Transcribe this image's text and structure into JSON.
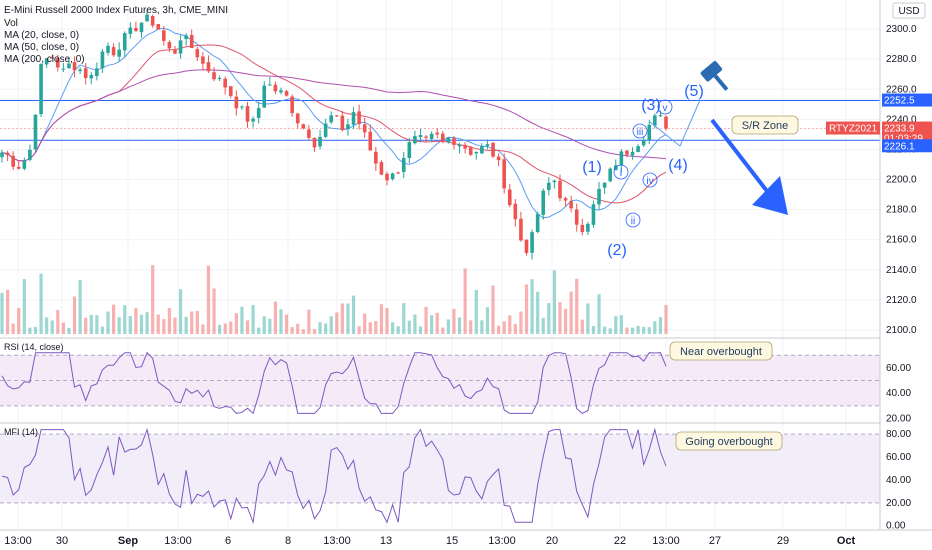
{
  "header": {
    "title": "E-Mini Russell 2000 Index Futures, 3h, CME_MINI",
    "indicators": [
      "Vol",
      "MA (20, close, 0)",
      "MA (50, close, 0)",
      "MA (200, close, 0)"
    ],
    "currency": "USD"
  },
  "chart_data": {
    "type": "candlestick",
    "price_axis": {
      "ticks": [
        2100,
        2120,
        2140,
        2160,
        2180,
        2200,
        2220,
        2240,
        2260,
        2280,
        2300
      ],
      "range": [
        2096,
        2318
      ]
    },
    "time_axis": {
      "labels": [
        "13:00",
        "30",
        "Sep",
        "13:00",
        "6",
        "8",
        "13:00",
        "13",
        "15",
        "13:00",
        "20",
        "22",
        "13:00",
        "27",
        "29",
        "Oct"
      ]
    },
    "last_price": {
      "symbol": "RTYZ2021",
      "value": "2233.9",
      "countdown": "01:03:29",
      "color": "#ef5350"
    },
    "levels": [
      {
        "value": 2252.5,
        "label": "2252.5",
        "color": "#2962ff"
      },
      {
        "value": 2226.1,
        "label": "2226.1",
        "color": "#2962ff"
      }
    ],
    "moving_averages": [
      {
        "period": 20,
        "color": "#5b9cf6"
      },
      {
        "period": 50,
        "color": "#e0546b"
      },
      {
        "period": 200,
        "color": "#b04fb0"
      }
    ],
    "close_path": [
      2218,
      2215,
      2208,
      2213,
      2222,
      2272,
      2280,
      2282,
      2270,
      2276,
      2276,
      2270,
      2268,
      2280,
      2290,
      2285,
      2292,
      2296,
      2302,
      2306,
      2306,
      2300,
      2288,
      2283,
      2296,
      2290,
      2285,
      2276,
      2272,
      2266,
      2262,
      2254,
      2246,
      2240,
      2236,
      2265,
      2262,
      2258,
      2256,
      2246,
      2236,
      2232,
      2224,
      2232,
      2242,
      2238,
      2232,
      2246,
      2236,
      2224,
      2212,
      2204,
      2200,
      2206,
      2218,
      2226,
      2226,
      2224,
      2230,
      2224,
      2228,
      2226,
      2222,
      2218,
      2220,
      2222,
      2216,
      2204,
      2185,
      2170,
      2152,
      2160,
      2182,
      2196,
      2200,
      2188,
      2180,
      2172,
      2168,
      2178,
      2192,
      2198,
      2210,
      2216,
      2220,
      2224,
      2230,
      2238,
      2242,
      2234
    ],
    "volume_note": "volume bars scale 0 to max",
    "rsi": {
      "title": "RSI (14, close)",
      "ticks": [
        20,
        40,
        60
      ],
      "band": [
        30,
        70
      ],
      "range": [
        18,
        82
      ]
    },
    "mfi": {
      "title": "MFI (14)",
      "ticks": [
        0,
        20,
        40,
        60,
        80
      ],
      "band": [
        20,
        80
      ],
      "range": [
        -2,
        88
      ]
    },
    "annotations": {
      "elliott_waves": [
        "(1)",
        "(2)",
        "(3)",
        "(4)",
        "(5)"
      ],
      "subwaves": [
        "i",
        "ii",
        "iii",
        "iv",
        "v"
      ],
      "callouts": [
        {
          "text": "S/R Zone"
        },
        {
          "text": "Near overbought"
        },
        {
          "text": "Going overbought"
        }
      ]
    }
  }
}
